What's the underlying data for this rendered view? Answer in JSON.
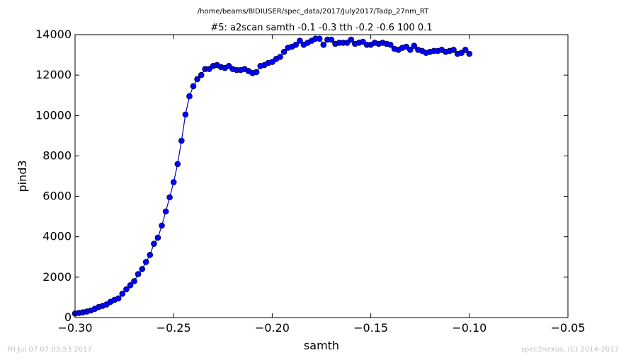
{
  "chart_data": {
    "type": "line",
    "suptitle": "/home/beams/8IDIUSER/spec_data/2017/July2017/Tadp_27nm_RT",
    "title": "#5: a2scan  samth -0.1 -0.3  tth -0.2 -0.6  100 0.1",
    "xlabel": "samth",
    "ylabel": "pind3",
    "xlim": [
      -0.3,
      -0.05
    ],
    "ylim": [
      0,
      14000
    ],
    "xticks": [
      -0.3,
      -0.25,
      -0.2,
      -0.15,
      -0.1,
      -0.05
    ],
    "xtick_labels": [
      "−0.30",
      "−0.25",
      "−0.20",
      "−0.15",
      "−0.10",
      "−0.05"
    ],
    "yticks": [
      0,
      2000,
      4000,
      6000,
      8000,
      10000,
      12000,
      14000
    ],
    "ytick_labels": [
      "0",
      "2000",
      "4000",
      "6000",
      "8000",
      "10000",
      "12000",
      "14000"
    ],
    "grid": false,
    "line_color": "#0000cc",
    "marker_color": "#0000ff",
    "series": [
      {
        "x": [
          -0.3,
          -0.298,
          -0.296,
          -0.294,
          -0.292,
          -0.29,
          -0.288,
          -0.286,
          -0.284,
          -0.282,
          -0.28,
          -0.278,
          -0.276,
          -0.274,
          -0.272,
          -0.27,
          -0.268,
          -0.266,
          -0.264,
          -0.262,
          -0.26,
          -0.258,
          -0.256,
          -0.254,
          -0.252,
          -0.25,
          -0.248,
          -0.246,
          -0.244,
          -0.242,
          -0.24,
          -0.238,
          -0.236,
          -0.234,
          -0.232,
          -0.23,
          -0.228,
          -0.226,
          -0.224,
          -0.222,
          -0.22,
          -0.218,
          -0.216,
          -0.214,
          -0.212,
          -0.21,
          -0.208,
          -0.206,
          -0.204,
          -0.202,
          -0.2,
          -0.198,
          -0.196,
          -0.194,
          -0.192,
          -0.19,
          -0.188,
          -0.186,
          -0.184,
          -0.182,
          -0.18,
          -0.178,
          -0.176,
          -0.174,
          -0.172,
          -0.17,
          -0.168,
          -0.166,
          -0.164,
          -0.162,
          -0.16,
          -0.158,
          -0.156,
          -0.154,
          -0.152,
          -0.15,
          -0.148,
          -0.146,
          -0.144,
          -0.142,
          -0.14,
          -0.138,
          -0.136,
          -0.134,
          -0.132,
          -0.13,
          -0.128,
          -0.126,
          -0.124,
          -0.122,
          -0.12,
          -0.118,
          -0.116,
          -0.114,
          -0.112,
          -0.11,
          -0.108,
          -0.106,
          -0.104,
          -0.102,
          -0.1
        ],
        "y": [
          200,
          230,
          260,
          300,
          350,
          430,
          520,
          580,
          650,
          780,
          880,
          950,
          1180,
          1400,
          1600,
          1800,
          2150,
          2400,
          2750,
          3100,
          3650,
          3950,
          4550,
          5250,
          5950,
          6700,
          7600,
          8750,
          10050,
          10950,
          11450,
          11800,
          12000,
          12300,
          12300,
          12450,
          12500,
          12400,
          12350,
          12450,
          12300,
          12250,
          12250,
          12300,
          12200,
          12100,
          12150,
          12450,
          12500,
          12600,
          12650,
          12800,
          12900,
          13150,
          13350,
          13400,
          13500,
          13700,
          13500,
          13600,
          13700,
          13800,
          13800,
          13500,
          13750,
          13750,
          13550,
          13600,
          13600,
          13600,
          13750,
          13550,
          13600,
          13650,
          13500,
          13500,
          13600,
          13550,
          13600,
          13550,
          13500,
          13300,
          13250,
          13350,
          13400,
          13250,
          13450,
          13250,
          13200,
          13100,
          13150,
          13200,
          13200,
          13250,
          13150,
          13200,
          13250,
          13050,
          13100,
          13250,
          13050
        ]
      }
    ]
  },
  "footer": {
    "left": "Fri Jul 07 07:03:53 2017",
    "right": "spec2nexus, (C) 2014-2017"
  }
}
